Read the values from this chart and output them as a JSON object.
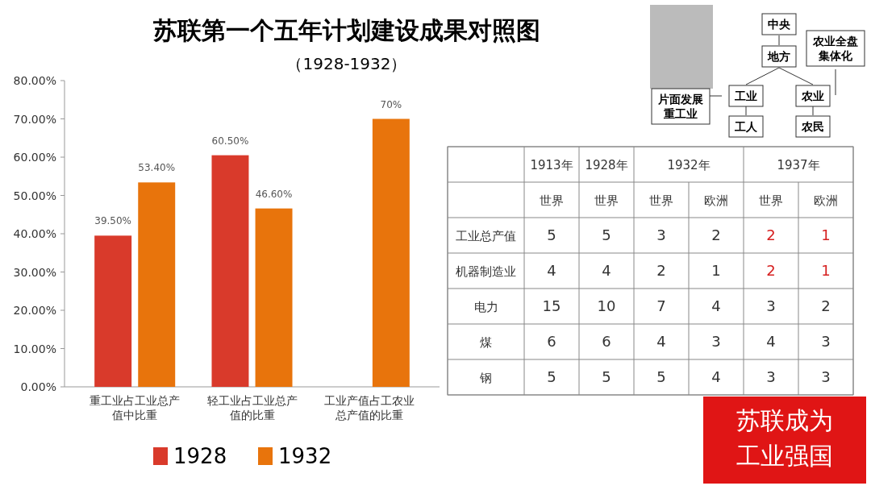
{
  "chart_data": {
    "type": "bar",
    "title": "苏联第一个五年计划建设成果对照图",
    "subtitle": "（1928-1932）",
    "categories": [
      "重工业占工业总产值中比重",
      "轻工业占工业总产值的比重",
      "工业产值占工农业总产值的比重"
    ],
    "series": [
      {
        "name": "1928",
        "color": "#d93a2b",
        "values": [
          39.5,
          60.5,
          null
        ],
        "value_labels": [
          "39.50%",
          "60.50%",
          null
        ]
      },
      {
        "name": "1932",
        "color": "#e8740c",
        "values": [
          53.4,
          46.6,
          70
        ],
        "value_labels": [
          "53.40%",
          "46.60%",
          "70%"
        ]
      }
    ],
    "ylim": [
      0,
      80
    ],
    "yticks": [
      {
        "value": 0,
        "label": "0.00%"
      },
      {
        "value": 10,
        "label": "10.00%"
      },
      {
        "value": 20,
        "label": "20.00%"
      },
      {
        "value": 30,
        "label": "30.00%"
      },
      {
        "value": 40,
        "label": "40.00%"
      },
      {
        "value": 50,
        "label": "50.00%"
      },
      {
        "value": 60,
        "label": "60.00%"
      },
      {
        "value": 70,
        "label": "70.00%"
      },
      {
        "value": 80,
        "label": "80.00%"
      }
    ],
    "grid": false,
    "legend": "bottom",
    "annotations": [
      "中央",
      "地方",
      "农业全盘集体化",
      "片面发展重工业",
      "工业",
      "农业",
      "工人",
      "农民",
      "1913年",
      "1928年",
      "1932年",
      "1937年",
      "世界",
      "世界",
      "世界",
      "欧洲",
      "世界",
      "欧洲",
      "工业总产值",
      "5",
      "5",
      "3",
      "2",
      "2",
      "1",
      "机器制造业",
      "4",
      "4",
      "2",
      "1",
      "2",
      "1",
      "电力",
      "15",
      "10",
      "7",
      "4",
      "3",
      "2",
      "煤",
      "6",
      "6",
      "4",
      "3",
      "4",
      "3",
      "钢",
      "5",
      "5",
      "5",
      "4",
      "3",
      "3",
      "苏联成为工业强国"
    ]
  }
}
